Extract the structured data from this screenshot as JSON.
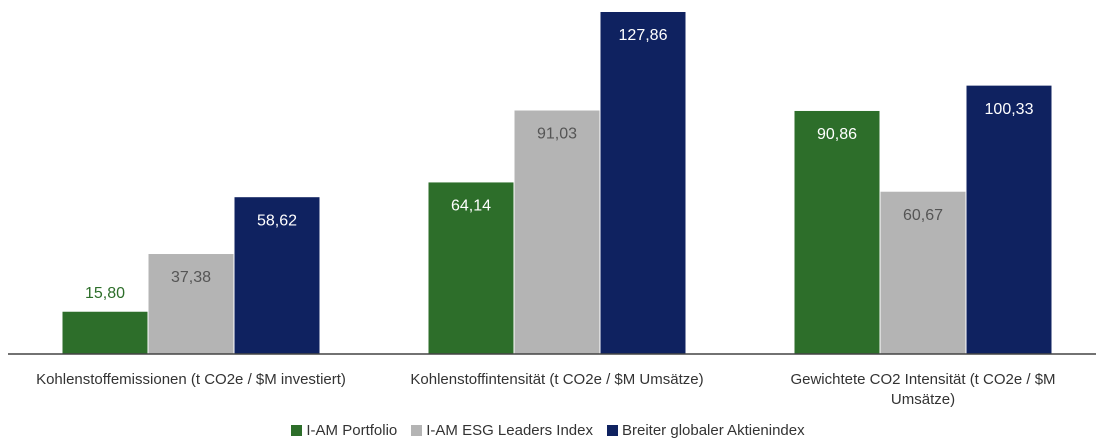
{
  "chart_data": {
    "type": "bar",
    "categories": [
      "Kohlenstoffemissionen (t CO2e / $M investiert)",
      "Kohlenstoffintensität (t CO2e / $M Umsätze)",
      "Gewichtete CO2 Intensität (t CO2e / $M Umsätze)"
    ],
    "series": [
      {
        "name": "I-AM Portfolio",
        "color": "#2d6e2a",
        "values": [
          15.8,
          64.14,
          90.86
        ],
        "value_labels": [
          "15,80",
          "64,14",
          "90,86"
        ]
      },
      {
        "name": "I-AM ESG Leaders Index",
        "color": "#b4b4b4",
        "values": [
          37.38,
          91.03,
          60.67
        ],
        "value_labels": [
          "37,38",
          "91,03",
          "60,67"
        ]
      },
      {
        "name": "Breiter globaler Aktienindex",
        "color": "#0f2260",
        "values": [
          58.62,
          127.86,
          100.33
        ],
        "value_labels": [
          "58,62",
          "127,86",
          "100,33"
        ]
      }
    ],
    "legend": "bottom"
  }
}
